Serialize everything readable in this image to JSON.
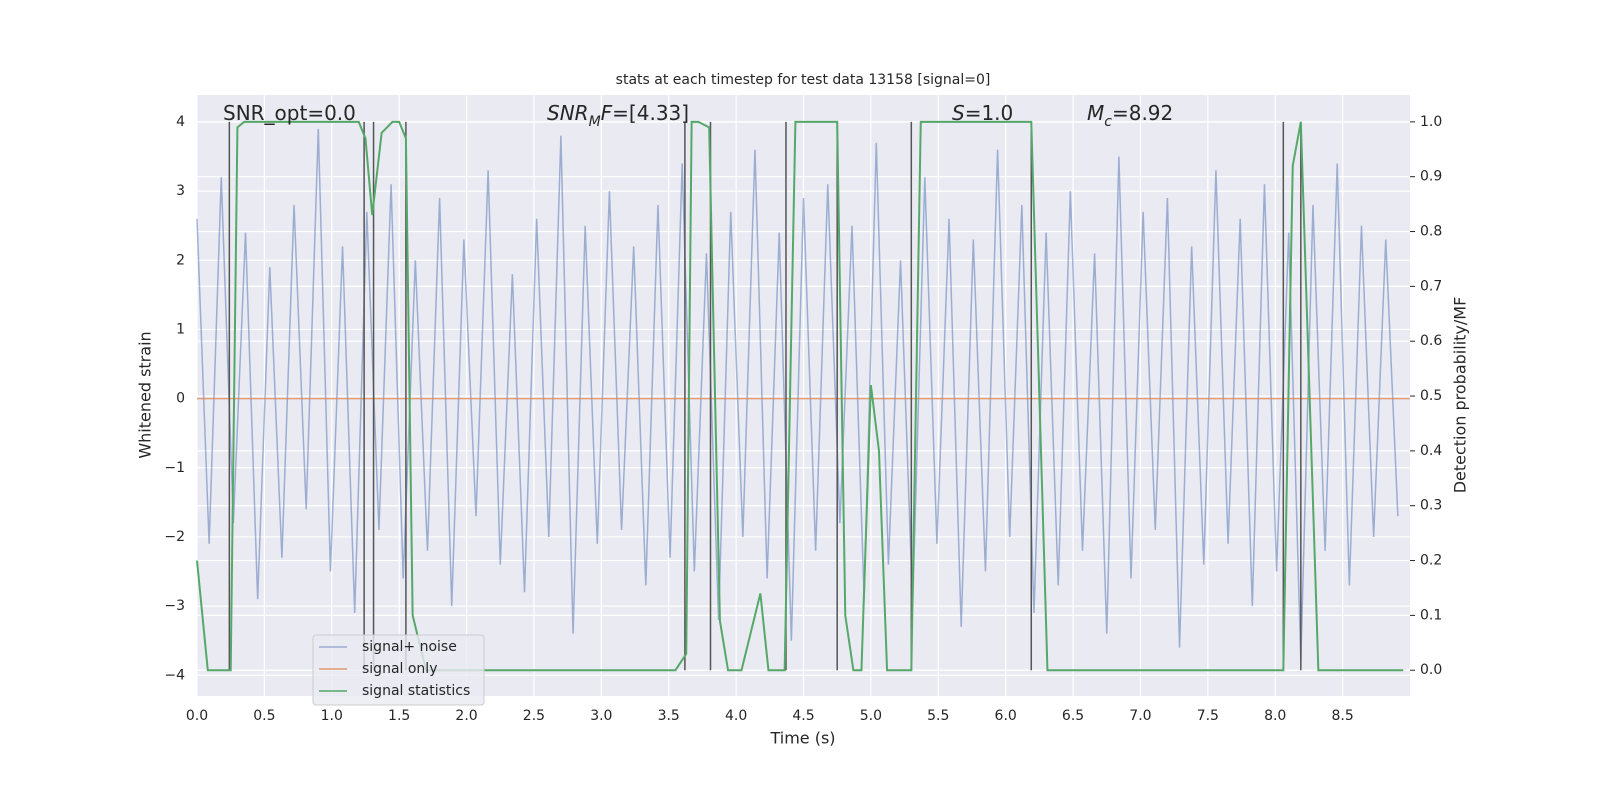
{
  "chart_data": {
    "type": "line",
    "title": "stats at each timestep for test data 13158 [signal=0]",
    "xlabel": "Time (s)",
    "ylabel": "Whitened strain",
    "y2label": "Detection probability/MF",
    "xlim": [
      0,
      9.0
    ],
    "ylim": [
      -4.3,
      4.39
    ],
    "y2lim": [
      -0.047,
      1.049
    ],
    "grid": true,
    "xticks": [
      {
        "value": 0,
        "label": "0.0"
      },
      {
        "value": 0.5,
        "label": "0.5"
      },
      {
        "value": 1,
        "label": "1.0"
      },
      {
        "value": 1.5,
        "label": "1.5"
      },
      {
        "value": 2,
        "label": "2.0"
      },
      {
        "value": 2.5,
        "label": "2.5"
      },
      {
        "value": 3,
        "label": "3.0"
      },
      {
        "value": 3.5,
        "label": "3.5"
      },
      {
        "value": 4,
        "label": "4.0"
      },
      {
        "value": 4.5,
        "label": "4.5"
      },
      {
        "value": 5,
        "label": "5.0"
      },
      {
        "value": 5.5,
        "label": "5.5"
      },
      {
        "value": 6,
        "label": "6.0"
      },
      {
        "value": 6.5,
        "label": "6.5"
      },
      {
        "value": 7,
        "label": "7.0"
      },
      {
        "value": 7.5,
        "label": "7.5"
      },
      {
        "value": 8,
        "label": "8.0"
      },
      {
        "value": 8.5,
        "label": "8.5"
      }
    ],
    "yticks": [
      {
        "value": -4,
        "label": "−4"
      },
      {
        "value": -3,
        "label": "−3"
      },
      {
        "value": -2,
        "label": "−2"
      },
      {
        "value": -1,
        "label": "−1"
      },
      0,
      1,
      2,
      3,
      4
    ],
    "y2ticks": [
      {
        "value": 0,
        "label": "0.0"
      },
      {
        "value": 0.1,
        "label": "0.1"
      },
      {
        "value": 0.2,
        "label": "0.2"
      },
      {
        "value": 0.3,
        "label": "0.3"
      },
      {
        "value": 0.4,
        "label": "0.4"
      },
      {
        "value": 0.5,
        "label": "0.5"
      },
      {
        "value": 0.6,
        "label": "0.6"
      },
      {
        "value": 0.7,
        "label": "0.7"
      },
      {
        "value": 0.8,
        "label": "0.8"
      },
      {
        "value": 0.9,
        "label": "0.9"
      },
      {
        "value": 1,
        "label": "1.0"
      }
    ],
    "series": [
      {
        "name": "signal+ noise",
        "color": "#4c72b0",
        "opacity": 0.5,
        "x": [
          0,
          0.09,
          0.18,
          0.27,
          0.36,
          0.45,
          0.54,
          0.63,
          0.72,
          0.81,
          0.9,
          0.99,
          1.08,
          1.17,
          1.26,
          1.35,
          1.44,
          1.53,
          1.62,
          1.71,
          1.8,
          1.89,
          1.98,
          2.07,
          2.16,
          2.25,
          2.34,
          2.43,
          2.52,
          2.61,
          2.7,
          2.79,
          2.88,
          2.97,
          3.06,
          3.15,
          3.24,
          3.33,
          3.42,
          3.51,
          3.6,
          3.69,
          3.78,
          3.87,
          3.96,
          4.05,
          4.14,
          4.23,
          4.32,
          4.41,
          4.5,
          4.59,
          4.68,
          4.77,
          4.86,
          4.95,
          5.04,
          5.13,
          5.22,
          5.31,
          5.4,
          5.49,
          5.58,
          5.67,
          5.76,
          5.85,
          5.94,
          6.03,
          6.12,
          6.21,
          6.3,
          6.39,
          6.48,
          6.57,
          6.66,
          6.75,
          6.84,
          6.93,
          7.02,
          7.11,
          7.2,
          7.29,
          7.38,
          7.47,
          7.56,
          7.65,
          7.74,
          7.83,
          7.92,
          8.01,
          8.1,
          8.19,
          8.28,
          8.37,
          8.46,
          8.55,
          8.64,
          8.73,
          8.82,
          8.91
        ],
        "values": [
          2.6,
          -2.1,
          3.2,
          -1.8,
          2.4,
          -2.9,
          1.9,
          -2.3,
          2.8,
          -1.6,
          3.9,
          -2.5,
          2.2,
          -3.1,
          2.7,
          -1.9,
          3.1,
          -2.6,
          2.0,
          -2.2,
          2.9,
          -3.0,
          2.3,
          -1.7,
          3.3,
          -2.4,
          1.8,
          -2.8,
          2.6,
          -2.0,
          3.8,
          -3.4,
          2.5,
          -2.1,
          3.0,
          -1.9,
          2.2,
          -2.7,
          2.8,
          -2.3,
          3.4,
          -2.5,
          2.1,
          -3.2,
          2.7,
          -2.0,
          3.6,
          -2.6,
          2.4,
          -3.5,
          2.9,
          -2.2,
          3.1,
          -1.8,
          2.5,
          -2.9,
          3.7,
          -2.4,
          2.0,
          -3.0,
          3.2,
          -2.1,
          2.6,
          -3.3,
          2.3,
          -2.5,
          3.6,
          -2.0,
          2.8,
          -3.1,
          2.4,
          -2.7,
          3.0,
          -2.2,
          2.1,
          -3.4,
          3.5,
          -2.6,
          2.7,
          -1.9,
          2.9,
          -3.6,
          2.2,
          -2.4,
          3.3,
          -2.1,
          2.6,
          -3.0,
          3.1,
          -2.5,
          2.4,
          -3.8,
          2.8,
          -2.2,
          3.4,
          -2.7,
          2.5,
          -2.0,
          2.3,
          -1.7
        ]
      },
      {
        "name": "signal only",
        "color": "#dd8452",
        "opacity": 0.8,
        "x": [
          0,
          9.0
        ],
        "values": [
          0,
          0
        ]
      },
      {
        "name": "signal statistics",
        "color": "#55a868",
        "opacity": 1,
        "axis": "y2",
        "x": [
          0,
          0.08,
          0.25,
          0.3,
          0.35,
          1.2,
          1.25,
          1.3,
          1.37,
          1.45,
          1.5,
          1.55,
          1.6,
          1.7,
          3.55,
          3.63,
          3.67,
          3.72,
          3.8,
          3.88,
          3.94,
          4.04,
          4.18,
          4.24,
          4.36,
          4.44,
          4.75,
          4.81,
          4.87,
          4.93,
          5.0,
          5.06,
          5.12,
          5.3,
          5.37,
          6.19,
          6.31,
          8.06,
          8.13,
          8.19,
          8.32,
          8.95
        ],
        "values": [
          0.2,
          0,
          0,
          0.99,
          1,
          1,
          0.97,
          0.83,
          0.98,
          1,
          1,
          0.97,
          0.1,
          0,
          0,
          0.03,
          1,
          1,
          0.99,
          0.09,
          0,
          0,
          0.14,
          0,
          0,
          1,
          1,
          0.1,
          0,
          0,
          0.52,
          0.4,
          0,
          0,
          1,
          1,
          0,
          0,
          0.92,
          1,
          0,
          0
        ]
      }
    ],
    "detections": [
      0.24,
      1.24,
      1.31,
      1.55,
      3.62,
      3.81,
      4.37,
      4.75,
      5.3,
      6.19,
      8.06,
      8.19
    ],
    "annotations": [
      [
        {
          "text": "SNR_opt=0.0"
        }
      ],
      [
        {
          "text": "SNR",
          "italic": true
        },
        {
          "text": "M",
          "italic": true,
          "sub": true
        },
        {
          "text": "F",
          "italic": true
        },
        {
          "text": "=[4.33]"
        }
      ],
      [
        {
          "text": "S",
          "italic": true
        },
        {
          "text": "=1.0"
        }
      ],
      [
        {
          "text": "M",
          "italic": true
        },
        {
          "text": "c",
          "italic": true,
          "sub": true
        },
        {
          "text": "=8.92"
        }
      ]
    ]
  }
}
